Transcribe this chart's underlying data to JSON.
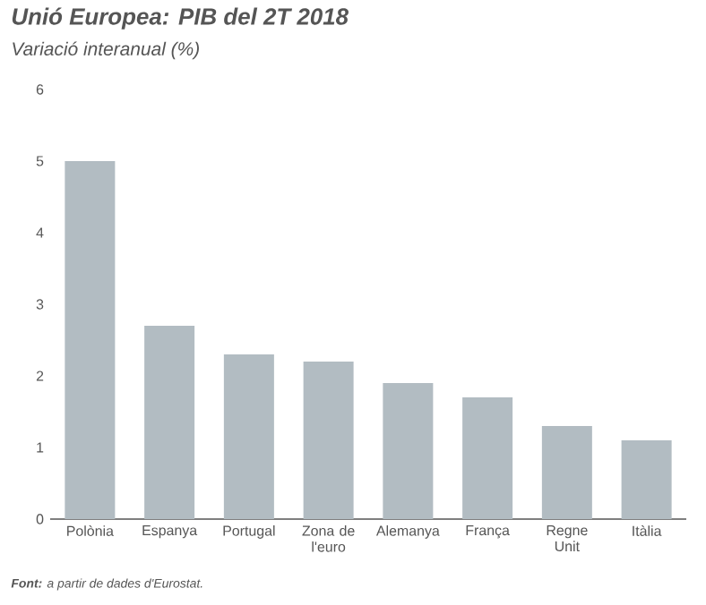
{
  "chart_data": {
    "type": "bar",
    "title": "Unió Europea: PIB del 2T 2018",
    "subtitle": "Variació interanual (%)",
    "categories": [
      "Polònia",
      "Espanya",
      "Portugal",
      "Zona de l'euro",
      "Alemanya",
      "França",
      "Regne Unit",
      "Itàlia"
    ],
    "values": [
      5.0,
      2.7,
      2.3,
      2.2,
      1.9,
      1.7,
      1.3,
      1.1
    ],
    "color": "#b2bcc2",
    "ylim": [
      0,
      6
    ],
    "yticks": [
      0,
      1,
      2,
      3,
      4,
      5,
      6
    ],
    "grid": false,
    "annotations": [
      "**Font:** a partir de dades d'Eurostat."
    ]
  }
}
